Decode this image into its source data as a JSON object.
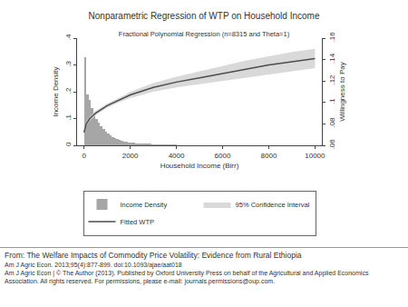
{
  "chart_data": {
    "type": "histogram",
    "title": "Nonparametric Regression of WTP on Household Income",
    "subtitle": "Fractional Polynomial Regression (n=8315 and Theta=1)",
    "x_label": "Household Income (Birr)",
    "y_label": "Income Density",
    "y2_label": "Willingness to Pay",
    "xlim": [
      -300,
      10300
    ],
    "xticks": [
      0,
      2000,
      4000,
      6000,
      8000,
      10000
    ],
    "ylim": [
      0,
      0.4
    ],
    "yticks": [
      0,
      {
        "value": 0.1,
        "label": ".1"
      },
      {
        "value": 0.2,
        "label": ".2"
      },
      {
        "value": 0.3,
        "label": ".3"
      },
      {
        "value": 0.4,
        "label": ".4"
      }
    ],
    "y2lim": [
      0.06,
      0.16
    ],
    "y2ticks": [
      {
        "value": 0.06,
        "label": ".06"
      },
      {
        "value": 0.08,
        "label": ".08"
      },
      {
        "value": 0.1,
        "label": ".1"
      },
      {
        "value": 0.12,
        "label": ".12"
      },
      {
        "value": 0.14,
        "label": ".14"
      },
      {
        "value": 0.16,
        "label": ".16"
      }
    ],
    "grid": false,
    "legend": "bottom",
    "bins": [
      0,
      100,
      200,
      300,
      400,
      500,
      600,
      700,
      800,
      900,
      1000,
      1100,
      1200,
      1300,
      1400,
      1500,
      1600,
      1700,
      1800,
      1900,
      2000,
      2100,
      2200,
      2300,
      2400,
      2500,
      2600,
      2700,
      2800,
      2900,
      3000,
      3100,
      3200,
      3300,
      3400,
      3500,
      3600,
      3700,
      3800,
      3900,
      4000
    ],
    "x": [
      0,
      100,
      250,
      500,
      1000,
      1500,
      2000,
      3000,
      4000,
      5000,
      6000,
      7000,
      8000,
      9000,
      10000
    ],
    "series": [
      {
        "name": "Income Density",
        "type": "bar",
        "color": "#a6a6a6",
        "values": [
          0.33,
          0.19,
          0.17,
          0.14,
          0.12,
          0.1,
          0.085,
          0.07,
          0.06,
          0.05,
          0.043,
          0.037,
          0.031,
          0.027,
          0.023,
          0.02,
          0.017,
          0.015,
          0.013,
          0.011,
          0.01,
          0.009,
          0.008,
          0.007,
          0.006,
          0.005,
          0.005,
          0.004,
          0.004,
          0.003,
          0.003,
          0.003,
          0.002,
          0.002,
          0.002,
          0.002,
          0.001,
          0.001,
          0.001,
          0.001
        ]
      },
      {
        "name": "95% Confidence Interval",
        "type": "band",
        "axis": "y2",
        "color": "#d9d9d9",
        "lower": [
          0.071,
          0.078,
          0.083,
          0.088,
          0.095,
          0.1,
          0.104,
          0.11,
          0.114,
          0.117,
          0.12,
          0.123,
          0.126,
          0.129,
          0.132
        ],
        "upper": [
          0.073,
          0.082,
          0.087,
          0.092,
          0.099,
          0.104,
          0.11,
          0.118,
          0.124,
          0.129,
          0.134,
          0.139,
          0.143,
          0.147,
          0.15
        ]
      },
      {
        "name": "Fitted WTP",
        "type": "line",
        "axis": "y2",
        "color": "#4d4d4d",
        "line_style": "solid",
        "values": [
          0.072,
          0.08,
          0.085,
          0.09,
          0.097,
          0.102,
          0.107,
          0.114,
          0.119,
          0.123,
          0.127,
          0.131,
          0.135,
          0.138,
          0.141
        ]
      }
    ]
  },
  "footer": [
    "From: The Welfare Impacts of Commodity Price Volatility: Evidence from Rural Ethiopia",
    "Am J Agric Econ. 2013;95(4):877-899. doi:10.1093/ajae/aat018",
    "Am J Agric Econ | © The Author (2013). Published by Oxford University Press on behalf of the Agricultural and Applied Economics Association. All rights reserved. For permissions, please e-mail: journals.permissions@oup.com."
  ]
}
